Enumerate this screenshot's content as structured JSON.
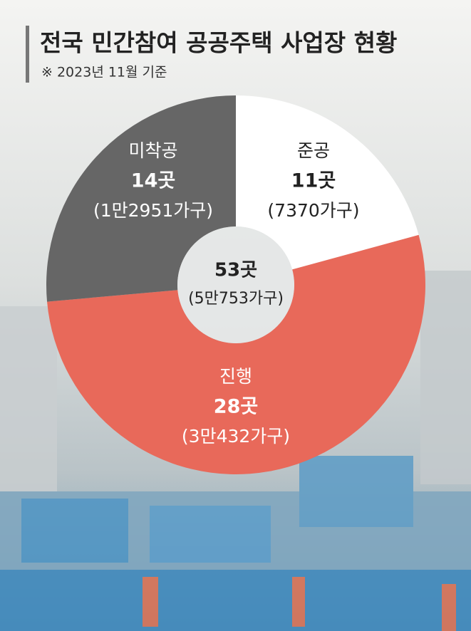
{
  "chart_data": {
    "type": "donut",
    "title": "전국 민간참여 공공주택 사업장 현황",
    "subtitle": "※ 2023년 11월 기준",
    "categories": [
      "준공",
      "진행",
      "미착공"
    ],
    "values": [
      11,
      28,
      14
    ],
    "value_labels": [
      "11곳",
      "28곳",
      "14곳"
    ],
    "household_labels": [
      "(7370가구)",
      "(3만432가구)",
      "(1만2951가구)"
    ],
    "colors": [
      "#ffffff",
      "#e8695a",
      "#666666"
    ],
    "center_label": "53곳",
    "center_sublabel": "(5만753가구)"
  }
}
